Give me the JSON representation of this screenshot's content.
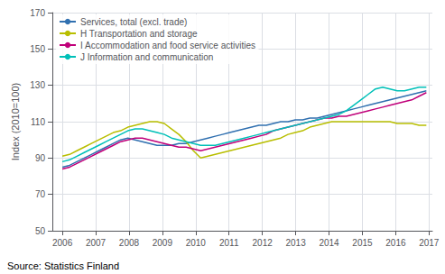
{
  "chart_data": {
    "type": "line",
    "ylabel": "Index (2010=100)",
    "annotations": [
      "Source: Statistics Finland"
    ],
    "xlim": [
      2005.7,
      2017.1
    ],
    "xticks": [
      2006,
      2007,
      2008,
      2009,
      2010,
      2011,
      2012,
      2013,
      2014,
      2015,
      2016,
      2017
    ],
    "ylim": [
      50,
      170
    ],
    "yticks": [
      50,
      70,
      90,
      110,
      130,
      150,
      170
    ],
    "grid": true,
    "legend": "upper left",
    "x": [
      2006,
      2006.2184,
      2006.4368,
      2006.6552,
      2006.8736,
      2007.092,
      2007.3104,
      2007.5288,
      2007.7472,
      2007.9656,
      2008.184,
      2008.4024,
      2008.6208,
      2008.8392,
      2009.0576,
      2009.276,
      2009.4944,
      2009.7128,
      2009.9312,
      2010.1496,
      2010.368,
      2010.5864,
      2010.8048,
      2011.0232,
      2011.2416,
      2011.46,
      2011.6784,
      2011.8968,
      2012.1152,
      2012.3336,
      2012.552,
      2012.7704,
      2012.9888,
      2013.2072,
      2013.4256,
      2013.644,
      2013.8624,
      2014.0808,
      2014.2992,
      2014.5176,
      2014.736,
      2014.9544,
      2015.1728,
      2015.3912,
      2015.6096,
      2015.828,
      2016.0464,
      2016.2648,
      2016.4832,
      2016.7016,
      2016.92
    ],
    "series": [
      {
        "name": "Services, total (excl. trade)",
        "color": "#3070b0",
        "values": [
          85,
          86,
          88,
          90,
          92,
          94,
          96,
          98,
          100,
          101,
          100,
          99,
          98,
          97,
          97,
          97,
          98,
          98,
          99,
          100,
          101,
          102,
          103,
          104,
          105,
          106,
          107,
          108,
          108,
          109,
          110,
          110,
          111,
          111,
          112,
          112,
          113,
          114,
          115,
          116,
          117,
          118,
          119,
          120,
          121,
          122,
          123,
          124,
          125,
          126,
          127
        ]
      },
      {
        "name": "H Transportation and storage",
        "color": "#b8be00",
        "values": [
          91,
          92,
          94,
          96,
          98,
          100,
          102,
          104,
          105,
          107,
          108,
          109,
          110,
          110,
          109,
          106,
          103,
          99,
          94,
          90,
          91,
          92,
          93,
          94,
          95,
          96,
          97,
          98,
          99,
          100,
          101,
          103,
          104,
          105,
          107,
          108,
          109,
          110,
          110,
          110,
          110,
          110,
          110,
          110,
          110,
          110,
          109,
          109,
          109,
          108,
          108
        ]
      },
      {
        "name": "I Accommodation and food service activities",
        "color": "#c0007a",
        "values": [
          84,
          85,
          87,
          89,
          91,
          93,
          95,
          97,
          99,
          100,
          101,
          101,
          100,
          99,
          98,
          97,
          96,
          96,
          95,
          94,
          95,
          96,
          97,
          98,
          99,
          100,
          101,
          102,
          103,
          105,
          106,
          107,
          108,
          109,
          110,
          111,
          112,
          112,
          113,
          113,
          114,
          115,
          116,
          117,
          118,
          119,
          120,
          121,
          122,
          124,
          126
        ]
      },
      {
        "name": "J Information and communication",
        "color": "#00c0b8",
        "values": [
          88,
          89,
          91,
          93,
          95,
          97,
          99,
          101,
          103,
          105,
          106,
          106,
          105,
          104,
          103,
          101,
          100,
          99,
          98,
          97,
          97,
          97,
          98,
          99,
          100,
          101,
          102,
          103,
          104,
          105,
          106,
          107,
          108,
          109,
          110,
          111,
          112,
          113,
          114,
          116,
          119,
          122,
          125,
          128,
          129,
          128,
          127,
          127,
          128,
          129,
          129
        ]
      }
    ]
  }
}
